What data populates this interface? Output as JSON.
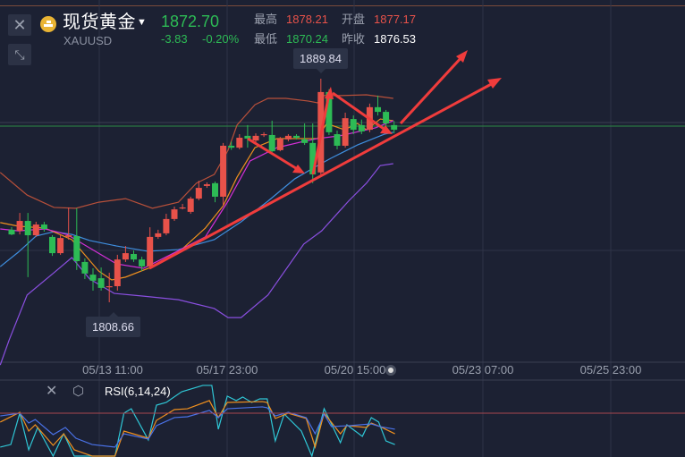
{
  "header": {
    "name": "现货黄金",
    "symbol": "XAUUSD",
    "price": "1872.70",
    "change": "-3.83",
    "change_pct": "-0.20%",
    "high_label": "最高",
    "high": "1878.21",
    "open_label": "开盘",
    "open": "1877.17",
    "low_label": "最低",
    "low": "1870.24",
    "prev_close_label": "昨收",
    "prev_close": "1876.53"
  },
  "icons": {
    "close": "close-icon",
    "collapse": "collapse-arrows-icon",
    "gold": "gold-bars-icon",
    "dropdown": "caret-down-icon",
    "settings": "hexagon-gear-icon"
  },
  "colors": {
    "up": "#e8524a",
    "down": "#2dbb55",
    "background": "#1c2133",
    "annotation": "#f03c3c"
  },
  "markers": {
    "max": "1889.84",
    "min": "1808.66"
  },
  "rsi": {
    "label": "RSI(6,14,24)"
  },
  "chart_data": [
    {
      "type": "candlestick",
      "x_ticks": [
        "05/13 11:00",
        "05/17 23:00",
        "05/20 15:00",
        "05/23 07:00",
        "05/25 23:00"
      ],
      "current_price": 1872.7,
      "candles": [
        [
          1835.0,
          1836.0,
          1833.0,
          1833.3
        ],
        [
          1834.6,
          1841.1,
          1833.3,
          1838.2
        ],
        [
          1838.2,
          1841.1,
          1817.8,
          1833.0
        ],
        [
          1833.0,
          1837.9,
          1832.4,
          1836.9
        ],
        [
          1836.9,
          1837.9,
          1834.3,
          1835.3
        ],
        [
          1832.4,
          1833.0,
          1825.5,
          1826.5
        ],
        [
          1826.5,
          1833.0,
          1825.9,
          1832.0
        ],
        [
          1832.4,
          1843.1,
          1831.4,
          1833.0
        ],
        [
          1832.7,
          1842.8,
          1820.4,
          1823.6
        ],
        [
          1823.3,
          1824.6,
          1817.1,
          1819.1
        ],
        [
          1818.7,
          1821.0,
          1812.9,
          1816.5
        ],
        [
          1817.4,
          1821.3,
          1812.9,
          1813.9
        ],
        [
          1814.2,
          1819.4,
          1808.66,
          1814.5
        ],
        [
          1814.5,
          1825.9,
          1812.9,
          1824.2
        ],
        [
          1824.2,
          1829.1,
          1823.3,
          1826.5
        ],
        [
          1826.2,
          1827.5,
          1823.3,
          1824.2
        ],
        [
          1824.2,
          1825.2,
          1820.0,
          1821.7
        ],
        [
          1821.7,
          1835.9,
          1821.0,
          1832.4
        ],
        [
          1832.4,
          1835.0,
          1831.7,
          1833.7
        ],
        [
          1833.7,
          1840.8,
          1833.0,
          1838.9
        ],
        [
          1838.9,
          1843.4,
          1838.2,
          1842.4
        ],
        [
          1842.8,
          1844.4,
          1842.4,
          1843.1
        ],
        [
          1841.5,
          1847.0,
          1840.8,
          1846.3
        ],
        [
          1846.3,
          1852.8,
          1845.7,
          1850.2
        ],
        [
          1850.9,
          1852.2,
          1850.2,
          1851.5
        ],
        [
          1851.9,
          1852.5,
          1845.0,
          1847.0
        ],
        [
          1847.0,
          1866.5,
          1843.7,
          1865.5
        ],
        [
          1865.5,
          1867.0,
          1864.0,
          1864.8
        ],
        [
          1864.8,
          1869.7,
          1864.2,
          1868.4
        ],
        [
          1869.1,
          1873.0,
          1864.8,
          1868.1
        ],
        [
          1867.4,
          1870.0,
          1866.8,
          1869.1
        ],
        [
          1869.4,
          1870.4,
          1868.7,
          1869.7
        ],
        [
          1869.4,
          1874.6,
          1863.2,
          1863.5
        ],
        [
          1863.9,
          1868.7,
          1863.5,
          1868.1
        ],
        [
          1867.8,
          1869.7,
          1867.1,
          1869.1
        ],
        [
          1869.1,
          1869.7,
          1867.8,
          1868.4
        ],
        [
          1867.8,
          1873.6,
          1865.8,
          1866.5
        ],
        [
          1866.5,
          1873.6,
          1851.9,
          1855.1
        ],
        [
          1855.8,
          1889.84,
          1855.1,
          1885.0
        ],
        [
          1885.0,
          1886.0,
          1869.4,
          1870.4
        ],
        [
          1869.7,
          1871.0,
          1864.2,
          1865.5
        ],
        [
          1865.5,
          1877.5,
          1864.8,
          1875.5
        ],
        [
          1875.2,
          1876.5,
          1869.7,
          1871.3
        ],
        [
          1873.0,
          1875.0,
          1869.7,
          1870.7
        ],
        [
          1871.3,
          1880.8,
          1870.4,
          1879.5
        ],
        [
          1879.5,
          1883.7,
          1876.5,
          1877.8
        ],
        [
          1877.8,
          1878.5,
          1872.3,
          1873.6
        ],
        [
          1873.0,
          1874.5,
          1870.0,
          1871.3
        ]
      ],
      "overlays": [
        {
          "color": "#b8503a",
          "points": [
            [
              -1.4,
              1855.8
            ],
            [
              1.9,
              1847.6
            ],
            [
              5.2,
              1843.1
            ],
            [
              7.9,
              1842.8
            ],
            [
              10.7,
              1845.0
            ],
            [
              14.0,
              1846.3
            ],
            [
              17.3,
              1842.8
            ],
            [
              20.5,
              1845.0
            ],
            [
              22.7,
              1851.9
            ],
            [
              24.9,
              1855.1
            ],
            [
              26.6,
              1863.9
            ],
            [
              27.7,
              1873.0
            ],
            [
              29.9,
              1880.4
            ],
            [
              31.5,
              1882.7
            ],
            [
              33.7,
              1882.7
            ],
            [
              36.5,
              1881.7
            ],
            [
              37.6,
              1881.1
            ],
            [
              38.4,
              1883.7
            ],
            [
              40.3,
              1883.7
            ],
            [
              43.6,
              1884.0
            ],
            [
              46.9,
              1882.7
            ]
          ]
        },
        {
          "color": "#3f8fe0",
          "points": [
            [
              -1.4,
              1821.6
            ],
            [
              0.8,
              1826.8
            ],
            [
              3.0,
              1832.7
            ],
            [
              5.2,
              1834.3
            ],
            [
              7.4,
              1833.3
            ],
            [
              9.6,
              1831.1
            ],
            [
              12.9,
              1829.1
            ],
            [
              16.7,
              1827.2
            ],
            [
              20.5,
              1827.8
            ],
            [
              24.9,
              1831.4
            ],
            [
              28.2,
              1837.9
            ],
            [
              31.5,
              1845.4
            ],
            [
              34.8,
              1853.5
            ],
            [
              37.6,
              1858.3
            ],
            [
              39.2,
              1860.9
            ],
            [
              42.5,
              1865.8
            ],
            [
              45.8,
              1869.7
            ],
            [
              46.9,
              1870.4
            ]
          ]
        },
        {
          "color": "#8a4fe0",
          "points": [
            [
              -1.4,
              1785.9
            ],
            [
              -0.3,
              1795.0
            ],
            [
              1.9,
              1811.3
            ],
            [
              5.2,
              1819.4
            ],
            [
              7.4,
              1824.9
            ],
            [
              9.6,
              1817.1
            ],
            [
              12.6,
              1811.9
            ],
            [
              16.2,
              1810.9
            ],
            [
              20.5,
              1809.6
            ],
            [
              24.9,
              1806.4
            ],
            [
              26.6,
              1803.1
            ],
            [
              28.2,
              1803.1
            ],
            [
              31.5,
              1811.3
            ],
            [
              35.9,
              1829.8
            ],
            [
              38.1,
              1834.6
            ],
            [
              41.4,
              1845.4
            ],
            [
              43.6,
              1851.9
            ],
            [
              45.3,
              1858.3
            ],
            [
              46.9,
              1859.0
            ]
          ]
        },
        {
          "color": "#f0901e",
          "points": [
            [
              -1.4,
              1837.6
            ],
            [
              0.8,
              1836.3
            ],
            [
              4.1,
              1835.6
            ],
            [
              7.4,
              1831.4
            ],
            [
              10.7,
              1820.0
            ],
            [
              12.3,
              1816.8
            ],
            [
              14.0,
              1817.8
            ],
            [
              17.3,
              1821.6
            ],
            [
              20.5,
              1826.8
            ],
            [
              23.8,
              1835.6
            ],
            [
              26.0,
              1843.7
            ],
            [
              27.7,
              1854.1
            ],
            [
              29.9,
              1864.8
            ],
            [
              32.6,
              1868.1
            ],
            [
              35.9,
              1868.1
            ],
            [
              37.6,
              1868.1
            ],
            [
              38.7,
              1873.6
            ],
            [
              40.9,
              1871.3
            ],
            [
              42.5,
              1873.6
            ],
            [
              43.6,
              1871.3
            ],
            [
              45.3,
              1875.2
            ],
            [
              46.9,
              1874.6
            ]
          ]
        },
        {
          "color": "#d52fd8",
          "points": [
            [
              -1.4,
              1835.3
            ],
            [
              0.8,
              1834.6
            ],
            [
              4.1,
              1835.3
            ],
            [
              6.8,
              1833.3
            ],
            [
              10.1,
              1827.5
            ],
            [
              12.9,
              1822.6
            ],
            [
              16.2,
              1821.0
            ],
            [
              19.5,
              1825.9
            ],
            [
              23.8,
              1832.4
            ],
            [
              26.6,
              1845.4
            ],
            [
              29.3,
              1860.0
            ],
            [
              32.6,
              1864.8
            ],
            [
              35.9,
              1867.1
            ],
            [
              37.6,
              1868.1
            ],
            [
              40.3,
              1869.1
            ],
            [
              44.7,
              1872.0
            ],
            [
              46.9,
              1874.6
            ]
          ]
        }
      ]
    },
    {
      "type": "line",
      "title": "RSI(6,14,24)",
      "reference_line": 80,
      "series": [
        {
          "color": "#2fc7d6",
          "points": [
            [
              -1.4,
              56.3
            ],
            [
              -0.1,
              58.1
            ],
            [
              1.0,
              80
            ],
            [
              2.1,
              54.4
            ],
            [
              3.2,
              70
            ],
            [
              5.1,
              50
            ],
            [
              6.4,
              65.6
            ],
            [
              7.7,
              50
            ],
            [
              12.7,
              50
            ],
            [
              13.8,
              80
            ],
            [
              14.7,
              83.1
            ],
            [
              16.8,
              61.3
            ],
            [
              17.8,
              85.6
            ],
            [
              19.0,
              87.5
            ],
            [
              20.9,
              95
            ],
            [
              23.5,
              99.4
            ],
            [
              24.6,
              99.4
            ],
            [
              25.4,
              68.8
            ],
            [
              26.5,
              91.9
            ],
            [
              27.6,
              88.8
            ],
            [
              28.4,
              91.3
            ],
            [
              29.5,
              87.5
            ],
            [
              30.5,
              90
            ],
            [
              31.4,
              90
            ],
            [
              32.4,
              60.6
            ],
            [
              33.5,
              79.4
            ],
            [
              35.6,
              67.5
            ],
            [
              36.9,
              50
            ],
            [
              38.4,
              83.1
            ],
            [
              40.4,
              59.4
            ],
            [
              41.2,
              71.9
            ],
            [
              43.1,
              63.8
            ],
            [
              44.2,
              76.9
            ],
            [
              45.1,
              73.8
            ],
            [
              46.0,
              60.6
            ],
            [
              47.1,
              58.1
            ]
          ]
        },
        {
          "color": "#f0901e",
          "points": [
            [
              -1.4,
              73.8
            ],
            [
              1.0,
              80.6
            ],
            [
              2.1,
              67.5
            ],
            [
              2.9,
              71.9
            ],
            [
              5.1,
              57.5
            ],
            [
              6.4,
              65.6
            ],
            [
              7.7,
              54.4
            ],
            [
              9.9,
              50
            ],
            [
              12.7,
              50
            ],
            [
              13.8,
              67.5
            ],
            [
              16.8,
              62.5
            ],
            [
              17.8,
              75
            ],
            [
              20.0,
              82.5
            ],
            [
              21.6,
              83.1
            ],
            [
              24.3,
              88.8
            ],
            [
              25.4,
              76.9
            ],
            [
              26.5,
              87.5
            ],
            [
              30.8,
              88.1
            ],
            [
              31.4,
              87.5
            ],
            [
              32.4,
              76.3
            ],
            [
              34.0,
              80
            ],
            [
              36.2,
              76.3
            ],
            [
              37.3,
              56.3
            ],
            [
              38.4,
              80
            ],
            [
              40.4,
              65.6
            ],
            [
              41.2,
              71.3
            ],
            [
              43.6,
              70
            ],
            [
              44.2,
              73.1
            ],
            [
              45.3,
              70.6
            ],
            [
              47.1,
              65.6
            ]
          ]
        },
        {
          "color": "#4a72e8",
          "points": [
            [
              -1.4,
              78.1
            ],
            [
              1.0,
              80
            ],
            [
              2.1,
              73.1
            ],
            [
              2.9,
              75.6
            ],
            [
              5.1,
              65
            ],
            [
              6.6,
              70
            ],
            [
              7.9,
              62.5
            ],
            [
              9.9,
              58.1
            ],
            [
              12.7,
              56.3
            ],
            [
              13.8,
              65.6
            ],
            [
              16.8,
              61.9
            ],
            [
              17.8,
              71.3
            ],
            [
              20.0,
              76.9
            ],
            [
              21.6,
              77.5
            ],
            [
              24.3,
              81.9
            ],
            [
              25.4,
              76.9
            ],
            [
              26.5,
              83.1
            ],
            [
              30.8,
              84.4
            ],
            [
              31.4,
              83.8
            ],
            [
              32.4,
              78.1
            ],
            [
              34.0,
              80.6
            ],
            [
              36.2,
              76.9
            ],
            [
              37.3,
              65.6
            ],
            [
              38.4,
              79.4
            ],
            [
              39.3,
              70.6
            ],
            [
              41.5,
              71.3
            ],
            [
              44.2,
              72.5
            ],
            [
              45.3,
              70.6
            ],
            [
              47.1,
              68.8
            ]
          ]
        }
      ]
    }
  ]
}
